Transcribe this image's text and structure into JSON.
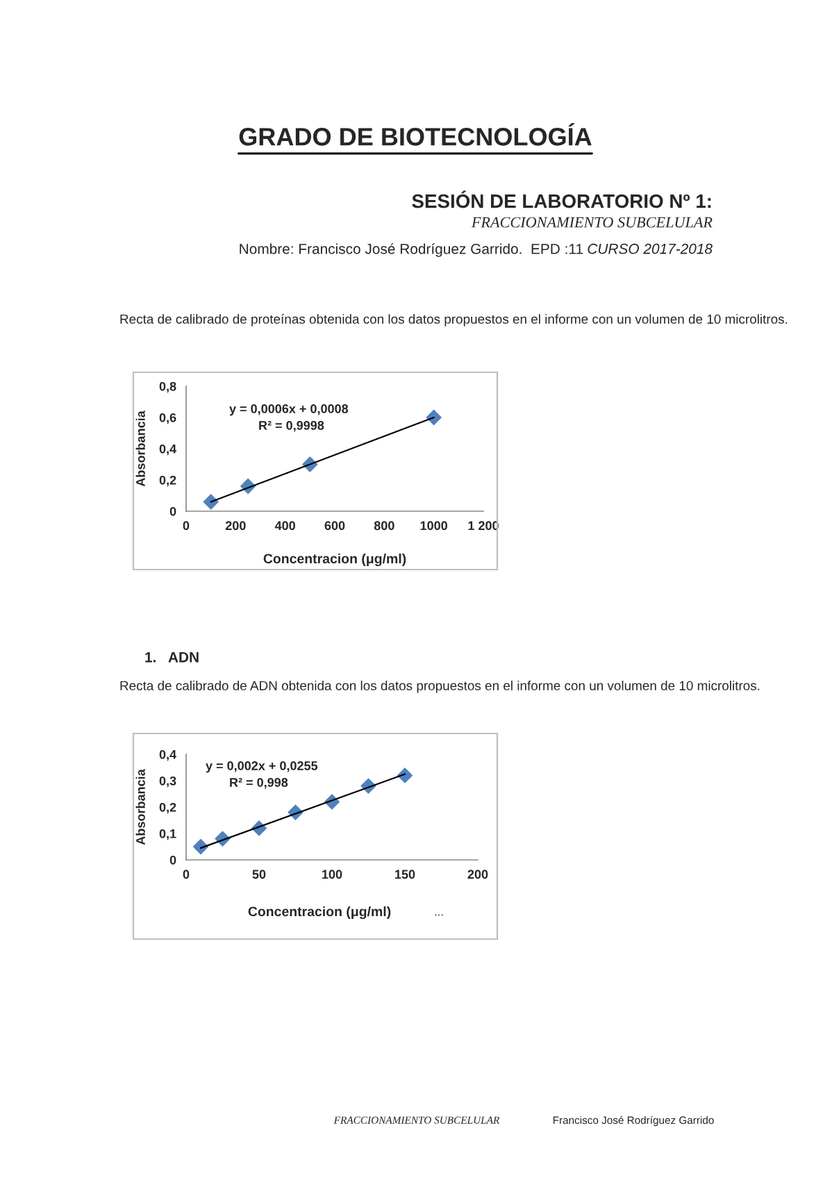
{
  "chart_data": [
    {
      "type": "scatter",
      "title": "Recta de calibrado de proteínas obtenida con los datos propuestos en el informe con un volumen de 10 microlitros.",
      "xlabel": "Concentracion (μg/ml)",
      "ylabel": "Absorbancia",
      "annotations": [
        "GRADO DE BIOTECNOLOGÍA",
        "SESIÓN DE LABORATORIO Nº 1:",
        "FRACCIONAMIENTO SUBCELULAR",
        "Nombre: Francisco José Rodríguez Garrido.  EPD :11",
        "CURSO 2017-2018",
        "y = 0,0006x + 0,0008",
        "R² = 0,9998"
      ],
      "series": [
        {
          "type": "scatter",
          "color": "#4f81bd",
          "marker": "diamond",
          "x": [
            100,
            250,
            500,
            1000
          ],
          "values": [
            0.06,
            0.16,
            0.3,
            0.6
          ]
        },
        {
          "type": "line",
          "color": "#000000",
          "marker": "none",
          "x": [
            100,
            1000
          ],
          "values": [
            0.06,
            0.6
          ]
        }
      ],
      "xlim": [
        0,
        1200
      ],
      "ylim": [
        0,
        0.8
      ],
      "xticks": [
        0,
        200,
        400,
        600,
        800,
        1000,
        {
          "value": 1200,
          "label": "1 200"
        }
      ],
      "yticks": [
        0,
        {
          "value": 0.2,
          "label": "0,2"
        },
        {
          "value": 0.4,
          "label": "0,4"
        },
        {
          "value": 0.6,
          "label": "0,6"
        },
        {
          "value": 0.8,
          "label": "0,8"
        }
      ],
      "grid": false,
      "legend": false
    },
    {
      "type": "scatter",
      "title": "Recta de calibrado de ADN obtenida con los datos propuestos en el informe con un volumen de 10 microlitros.",
      "xlabel": "Concentracion (μg/ml)",
      "ylabel": "Absorbancia",
      "annotations": [
        "1.   ADN",
        "y = 0,002x + 0,0255",
        "R² = 0,998",
        "...",
        "FRACCIONAMIENTO SUBCELULAR",
        "Francisco José Rodríguez Garrido"
      ],
      "series": [
        {
          "type": "scatter",
          "color": "#4f81bd",
          "marker": "diamond",
          "x": [
            10,
            25,
            50,
            75,
            100,
            125,
            150
          ],
          "values": [
            0.05,
            0.08,
            0.12,
            0.18,
            0.22,
            0.28,
            0.32
          ]
        },
        {
          "type": "line",
          "color": "#000000",
          "marker": "none",
          "x": [
            10,
            150
          ],
          "values": [
            0.045,
            0.325
          ]
        }
      ],
      "xlim": [
        0,
        200
      ],
      "ylim": [
        0,
        0.4
      ],
      "xticks": [
        0,
        50,
        100,
        150,
        200
      ],
      "yticks": [
        0,
        {
          "value": 0.1,
          "label": "0,1"
        },
        {
          "value": 0.2,
          "label": "0,2"
        },
        {
          "value": 0.3,
          "label": "0,3"
        },
        {
          "value": 0.4,
          "label": "0,4"
        }
      ],
      "grid": false,
      "legend": false
    }
  ]
}
